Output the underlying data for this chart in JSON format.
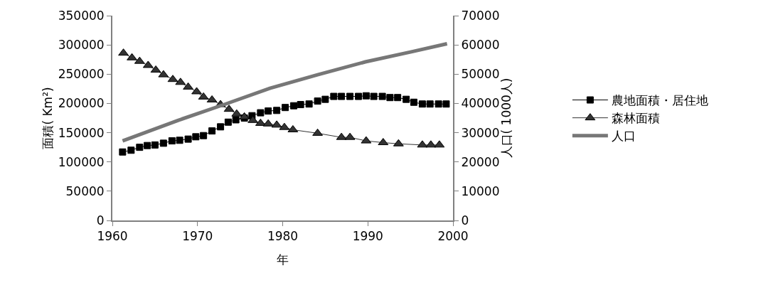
{
  "chart_data": {
    "type": "line",
    "xlabel": "年",
    "ylabel": "面積( Km²)",
    "y2label": "人口( 1000人)",
    "xlim": [
      1960,
      2000
    ],
    "xticks": [
      1960,
      1970,
      1980,
      1990,
      2000
    ],
    "ylim": [
      0,
      350000
    ],
    "yticks": [
      0,
      50000,
      100000,
      150000,
      200000,
      250000,
      300000,
      350000
    ],
    "y2lim": [
      0,
      70000
    ],
    "y2ticks": [
      0,
      10000,
      20000,
      30000,
      40000,
      50000,
      60000,
      70000
    ],
    "legend": "right",
    "line_style": "solid",
    "series": [
      {
        "name": "農地面積・居住地",
        "color": "#000000",
        "marker": "square",
        "x": [
          1961.2,
          1962.2,
          1963.2,
          1964.1,
          1965.0,
          1966.0,
          1967.0,
          1967.9,
          1968.9,
          1969.8,
          1970.7,
          1971.7,
          1972.7,
          1973.6,
          1974.5,
          1975.5,
          1976.4,
          1977.4,
          1978.3,
          1979.3,
          1980.3,
          1981.3,
          1982.1,
          1983.1,
          1984.1,
          1985.0,
          1986.0,
          1986.9,
          1987.9,
          1988.9,
          1989.8,
          1990.7,
          1991.7,
          1992.6,
          1993.5,
          1994.5,
          1995.4,
          1996.4,
          1997.3,
          1998.3,
          1999.2
        ],
        "values": [
          117000,
          120000,
          125000,
          128000,
          129000,
          132000,
          136000,
          137000,
          139000,
          143000,
          145000,
          153000,
          160000,
          168000,
          172000,
          175000,
          179000,
          184000,
          187000,
          188000,
          193000,
          196000,
          198000,
          199000,
          204000,
          207000,
          212000,
          212000,
          212000,
          212000,
          213000,
          212000,
          212000,
          210000,
          210000,
          207000,
          202000,
          199000,
          199000,
          199000,
          199000
        ]
      },
      {
        "name": "森林面積",
        "color": "#333333",
        "marker": "triangle",
        "x": [
          1961.3,
          1962.3,
          1963.2,
          1964.2,
          1965.1,
          1966.0,
          1967.1,
          1968.0,
          1968.9,
          1969.9,
          1970.7,
          1971.7,
          1972.7,
          1973.7,
          1974.6,
          1975.5,
          1976.5,
          1977.4,
          1978.3,
          1979.3,
          1980.2,
          1981.2,
          1984.1,
          1986.9,
          1987.9,
          1989.8,
          1991.8,
          1993.6,
          1996.4,
          1997.4,
          1998.4
        ],
        "values": [
          286000,
          278000,
          272000,
          265000,
          257000,
          249000,
          241000,
          236000,
          228000,
          220000,
          211000,
          206000,
          198000,
          190000,
          182000,
          177000,
          171000,
          166000,
          165000,
          163000,
          159000,
          155000,
          149000,
          142000,
          142000,
          136000,
          133000,
          131000,
          129000,
          129000,
          129000
        ]
      },
      {
        "name": "人口",
        "color": "#777777",
        "marker": "none",
        "axis": "y2",
        "x": [
          1961.2,
          1967.7,
          1973.3,
          1978.5,
          1984.1,
          1989.7,
          1995.2,
          1999.3
        ],
        "values": [
          27200,
          34200,
          39800,
          45200,
          49800,
          54200,
          57700,
          60400
        ]
      }
    ]
  }
}
